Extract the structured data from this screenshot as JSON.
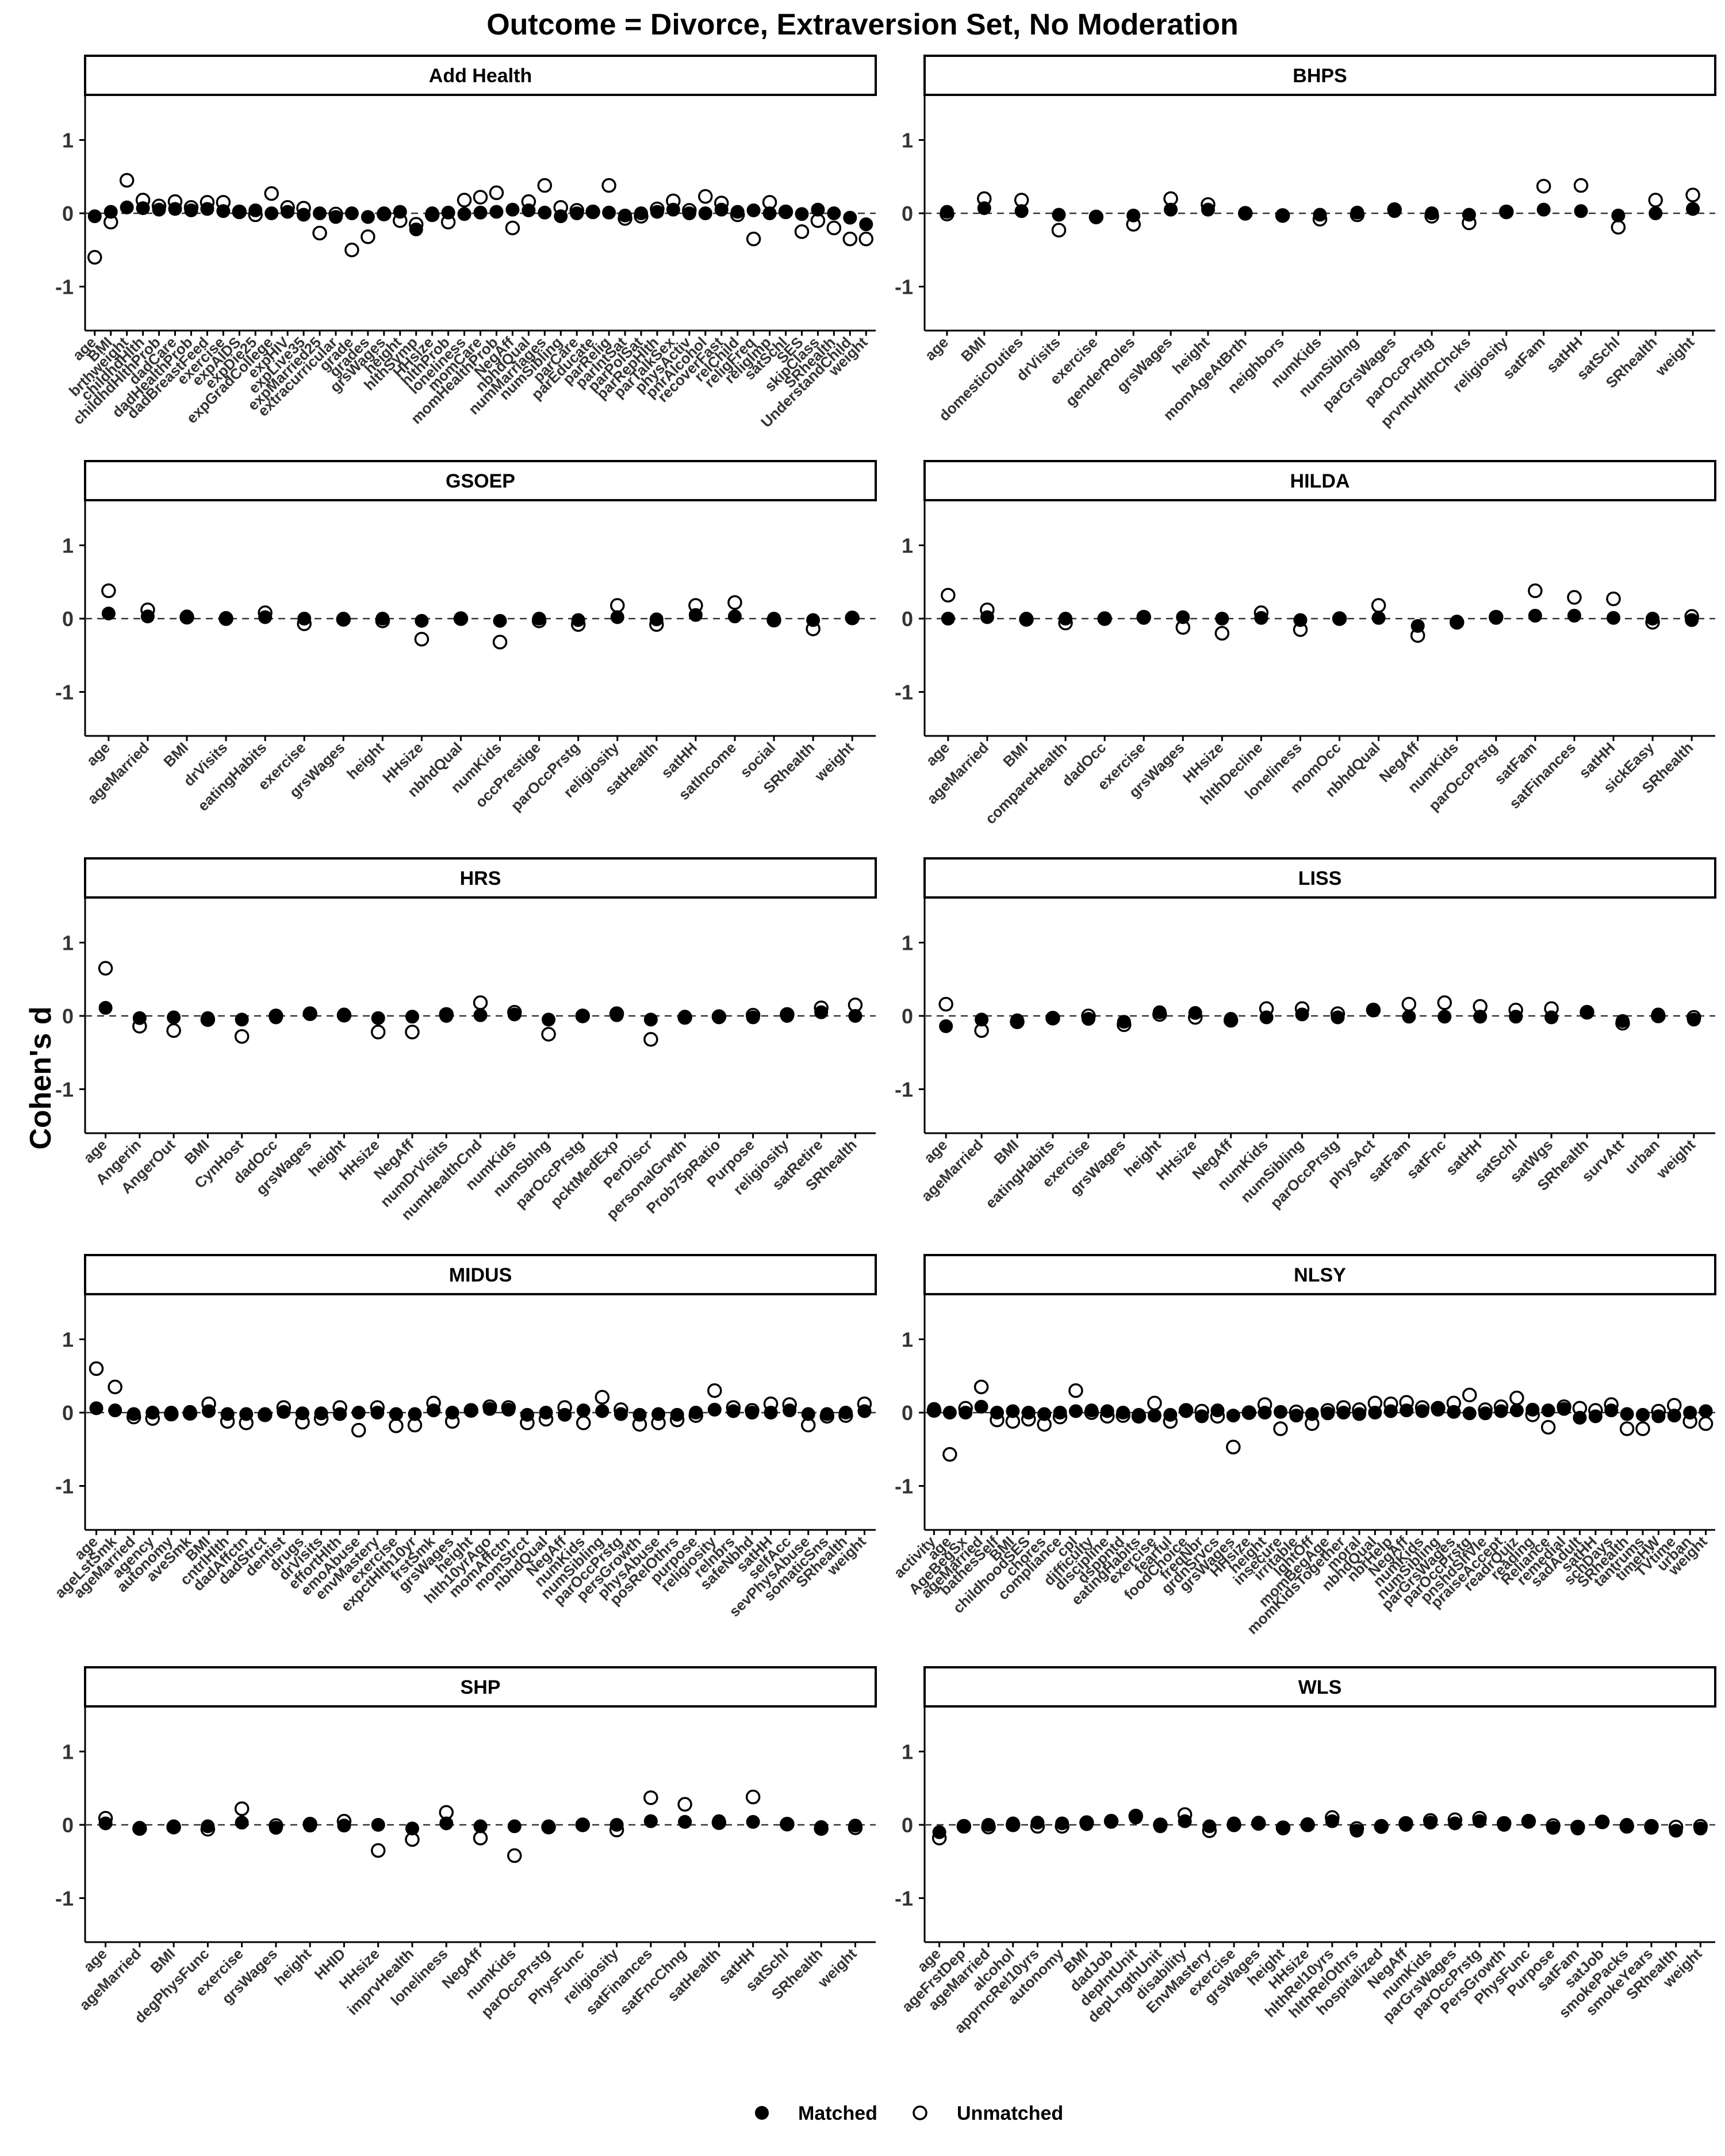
{
  "chart_data": {
    "type": "scatter",
    "title": "Outcome = Divorce, Extraversion Set, No Moderation",
    "ylabel": "Cohen's d",
    "ylim": [
      -1.6,
      1.6
    ],
    "yticks": [
      -1,
      0,
      1
    ],
    "reference_line": 0,
    "legend": {
      "position": "bottom",
      "entries": [
        {
          "label": "Matched",
          "marker": "filled-circle"
        },
        {
          "label": "Unmatched",
          "marker": "open-circle"
        }
      ]
    },
    "panels": [
      {
        "name": "Add Health",
        "x": [
          "age",
          "BMI",
          "brthweight",
          "childhdHlth",
          "childhdHlthProb",
          "dadCare",
          "dadHealthProb",
          "dadBreastFeed",
          "exercise",
          "expAIDS",
          "expDie25",
          "expGradCollege",
          "expHIV",
          "expLive35",
          "expMarried25",
          "extracurricular",
          "grade",
          "grades",
          "grsWages",
          "height",
          "hlthSymp",
          "HHsize",
          "hlthProb",
          "loneliness",
          "momCare",
          "momHealthProb",
          "NegAff",
          "nbhdQual",
          "numMarriages",
          "numSibling",
          "parCare",
          "parEducate",
          "parRelig",
          "parIntSat",
          "parPolSat",
          "parRepHlth",
          "parTalkSex",
          "physActiv",
          "pnrAlcohol",
          "recoverFast",
          "relChild",
          "religFreq",
          "religImp",
          "satSchl",
          "SES",
          "skipClass",
          "SRhealth",
          "UnderstandChild",
          "weight"
        ],
        "matched": [
          -0.04,
          0.02,
          0.08,
          0.07,
          0.05,
          0.06,
          0.04,
          0.06,
          0.03,
          0.02,
          0.04,
          0.0,
          0.02,
          -0.02,
          0.0,
          -0.05,
          0.0,
          -0.05,
          0.0,
          0.02,
          -0.22,
          0.0,
          0.01,
          -0.01,
          0.01,
          0.02,
          0.05,
          0.04,
          0.01,
          -0.04,
          0.0,
          0.02,
          0.01,
          -0.03,
          0.0,
          0.02,
          0.05,
          0.0,
          0.0,
          0.05,
          0.02,
          0.04,
          0.0,
          0.02,
          -0.01,
          0.05,
          0.0,
          -0.06,
          -0.15
        ],
        "unmatched": [
          -0.6,
          -0.12,
          0.45,
          0.18,
          0.1,
          0.16,
          0.08,
          0.15,
          0.15,
          0.02,
          -0.02,
          0.27,
          0.08,
          0.07,
          -0.27,
          -0.01,
          -0.5,
          -0.32,
          -0.01,
          -0.1,
          -0.15,
          -0.02,
          -0.12,
          0.18,
          0.22,
          0.28,
          -0.2,
          0.16,
          0.38,
          0.08,
          0.04,
          0.02,
          0.38,
          -0.07,
          -0.04,
          0.06,
          0.17,
          0.04,
          0.23,
          0.14,
          -0.02,
          -0.35,
          0.15,
          0.02,
          -0.25,
          -0.1,
          -0.2,
          -0.35,
          -0.35
        ]
      },
      {
        "name": "BHPS",
        "x": [
          "age",
          "BMI",
          "domesticDuties",
          "drVisits",
          "exercise",
          "genderRoles",
          "grsWages",
          "height",
          "momAgeAtBrth",
          "neighbors",
          "numKids",
          "numSiblng",
          "parGrsWages",
          "parOccPrstg",
          "prvntvHlthChcks",
          "religiosity",
          "satFam",
          "satHH",
          "satSchl",
          "SRhealth",
          "weight"
        ],
        "matched": [
          0.02,
          0.07,
          0.03,
          -0.02,
          -0.05,
          -0.03,
          0.05,
          0.05,
          0.0,
          -0.03,
          -0.02,
          0.01,
          0.03,
          0.0,
          -0.02,
          0.02,
          0.05,
          0.03,
          -0.03,
          0.0,
          0.06
        ],
        "unmatched": [
          -0.01,
          0.2,
          0.18,
          -0.23,
          -0.05,
          -0.15,
          0.2,
          0.12,
          0.0,
          -0.03,
          -0.08,
          -0.02,
          0.05,
          -0.04,
          -0.13,
          0.02,
          0.37,
          0.38,
          -0.19,
          0.18,
          0.25
        ]
      },
      {
        "name": "GSOEP",
        "x": [
          "age",
          "ageMarried",
          "BMI",
          "drVisits",
          "eatingHabits",
          "exercise",
          "grsWages",
          "height",
          "HHsize",
          "nbhdQual",
          "numKids",
          "occPrestige",
          "parOccPrstg",
          "religiosity",
          "satHealth",
          "satHH",
          "satIncome",
          "social",
          "SRhealth",
          "weight"
        ],
        "matched": [
          0.07,
          0.03,
          0.03,
          0.01,
          0.02,
          0.0,
          0.0,
          0.0,
          -0.03,
          0.0,
          -0.03,
          0.0,
          -0.02,
          0.02,
          -0.01,
          0.05,
          0.03,
          0.0,
          -0.02,
          0.01
        ],
        "unmatched": [
          0.38,
          0.12,
          0.02,
          0.0,
          0.08,
          -0.07,
          -0.01,
          -0.03,
          -0.28,
          0.0,
          -0.32,
          -0.03,
          -0.08,
          0.18,
          -0.08,
          0.18,
          0.22,
          -0.02,
          -0.14,
          0.01
        ]
      },
      {
        "name": "HILDA",
        "x": [
          "age",
          "ageMarried",
          "BMI",
          "compareHealth",
          "dadOcc",
          "exercise",
          "grsWages",
          "HHsize",
          "hlthDecline",
          "loneliness",
          "momOcc",
          "nbhdQual",
          "NegAff",
          "numKids",
          "parOccPrstg",
          "satFam",
          "satFinances",
          "satHH",
          "sickEasy",
          "SRhealth"
        ],
        "matched": [
          0.0,
          0.02,
          0.0,
          0.0,
          0.0,
          0.01,
          0.02,
          0.0,
          0.01,
          -0.02,
          0.0,
          0.01,
          -0.1,
          -0.04,
          0.01,
          0.04,
          0.04,
          0.01,
          0.0,
          -0.02
        ],
        "unmatched": [
          0.32,
          0.12,
          -0.01,
          -0.06,
          0.0,
          0.02,
          -0.12,
          -0.2,
          0.08,
          -0.15,
          0.0,
          0.18,
          -0.23,
          -0.05,
          0.02,
          0.38,
          0.29,
          0.27,
          -0.05,
          0.03
        ]
      },
      {
        "name": "HRS",
        "x": [
          "age",
          "Angerin",
          "AngerOut",
          "BMI",
          "CynHost",
          "dadOcc",
          "grsWages",
          "height",
          "HHsize",
          "NegAff",
          "numDrVisits",
          "numHealthCnd",
          "numKids",
          "numSblng",
          "parOccPrstg",
          "pcktMedExp",
          "PerDiscr",
          "personalGrwth",
          "Prob75pRatio",
          "Purpose",
          "religiosity",
          "satRetire",
          "SRhealth"
        ],
        "matched": [
          0.11,
          -0.03,
          -0.02,
          -0.03,
          -0.05,
          -0.02,
          0.03,
          0.02,
          -0.03,
          -0.01,
          0.0,
          0.01,
          0.02,
          -0.05,
          0.0,
          0.01,
          -0.05,
          -0.01,
          -0.02,
          -0.02,
          0.0,
          0.05,
          0.0
        ],
        "unmatched": [
          0.65,
          -0.14,
          -0.2,
          -0.05,
          -0.28,
          0.0,
          0.03,
          0.01,
          -0.22,
          -0.22,
          0.02,
          0.18,
          0.05,
          -0.25,
          0.0,
          0.03,
          -0.32,
          -0.02,
          -0.01,
          0.01,
          0.02,
          0.11,
          0.15
        ]
      },
      {
        "name": "LISS",
        "x": [
          "age",
          "ageMarried",
          "BMI",
          "eatingHabits",
          "exercise",
          "grsWages",
          "height",
          "HHsize",
          "NegAff",
          "numKids",
          "numSibling",
          "parOccPrstg",
          "physAct",
          "satFam",
          "satFnc",
          "satHH",
          "satSchl",
          "satWgs",
          "SRhealth",
          "survAtt",
          "urban",
          "weight"
        ],
        "matched": [
          -0.14,
          -0.05,
          -0.06,
          -0.03,
          -0.04,
          -0.08,
          0.05,
          0.04,
          -0.04,
          -0.02,
          0.02,
          -0.02,
          0.08,
          -0.01,
          -0.01,
          -0.01,
          -0.01,
          -0.02,
          0.05,
          -0.07,
          0.02,
          -0.05
        ],
        "unmatched": [
          0.16,
          -0.2,
          -0.08,
          -0.03,
          0.0,
          -0.12,
          0.02,
          -0.02,
          -0.06,
          0.1,
          0.1,
          0.03,
          0.08,
          0.16,
          0.18,
          0.13,
          0.08,
          0.1,
          0.05,
          -0.1,
          0.0,
          -0.02
        ]
      },
      {
        "name": "MIDUS",
        "x": [
          "age",
          "ageLstSmk",
          "ageMarried",
          "agency",
          "autonomy",
          "aveSmk",
          "BMI",
          "cntrlHlth",
          "dadAffctn",
          "dadStrct",
          "dentist",
          "drugs",
          "drVisits",
          "effortHlth",
          "emoAbuse",
          "envMastery",
          "exercise",
          "expctHlth10yr",
          "frstSmk",
          "grsWages",
          "height",
          "hlth10yrAgo",
          "momAffctn",
          "momStrct",
          "nbhdQual",
          "NegAff",
          "numKids",
          "numSibling",
          "parOccPrstg",
          "persGrowth",
          "physAbuse",
          "posRelOthrs",
          "purpose",
          "religiosity",
          "relnbrs",
          "safeNbhd",
          "satHH",
          "selfAcc",
          "sevPhysAbuse",
          "somaticSns",
          "SRhealth",
          "weight"
        ],
        "matched": [
          0.06,
          0.03,
          -0.02,
          0.0,
          0.0,
          0.01,
          0.02,
          -0.02,
          -0.02,
          -0.02,
          0.01,
          -0.01,
          -0.01,
          -0.02,
          0.0,
          0.0,
          -0.02,
          -0.02,
          0.03,
          0.0,
          0.03,
          0.05,
          0.04,
          -0.03,
          0.0,
          -0.03,
          0.03,
          0.02,
          -0.02,
          -0.03,
          -0.02,
          -0.03,
          0.0,
          0.04,
          0.02,
          0.0,
          0.0,
          0.03,
          -0.02,
          -0.02,
          0.0,
          0.02
        ],
        "unmatched": [
          0.6,
          0.35,
          -0.06,
          -0.08,
          -0.02,
          -0.01,
          0.12,
          -0.12,
          -0.14,
          -0.03,
          0.07,
          -0.13,
          -0.08,
          0.07,
          -0.24,
          0.07,
          -0.18,
          -0.17,
          0.13,
          -0.12,
          0.03,
          0.08,
          0.07,
          -0.14,
          -0.09,
          0.07,
          -0.14,
          0.21,
          0.04,
          -0.16,
          -0.14,
          -0.1,
          -0.04,
          0.3,
          0.07,
          0.03,
          0.12,
          0.11,
          -0.17,
          -0.05,
          -0.04,
          0.12
        ]
      },
      {
        "name": "NLSY",
        "x": [
          "activity",
          "age",
          "AgeBegSx",
          "ageMarried",
          "bathesSelf",
          "BMI",
          "childhoodSES",
          "chores",
          "compliance",
          "cpl",
          "difficulty",
          "discipline",
          "dsppntd",
          "eatingHabits",
          "exercise",
          "fearful",
          "foodChoice",
          "freqNbr",
          "grdnSrvcs",
          "grsWages",
          "HHsize",
          "height",
          "insecure",
          "irritable",
          "lghtOff",
          "momBegAge",
          "momKidsTogether",
          "moral",
          "nbhdQual",
          "nbrHelp",
          "NegAff",
          "numKids",
          "numSibling",
          "parGrsWages",
          "parOccPrstg",
          "pnshdSlfVle",
          "praiseAccept",
          "readrQuiz",
          "reading",
          "Reliance",
          "remedial",
          "sadAdult",
          "satHH",
          "schDays",
          "SRhealth",
          "tantrums",
          "timeHW",
          "TVtime",
          "urban",
          "weight"
        ],
        "matched": [
          0.05,
          0.0,
          0.0,
          0.08,
          0.0,
          0.02,
          0.0,
          -0.02,
          0.0,
          0.02,
          0.03,
          0.02,
          0.0,
          -0.03,
          -0.04,
          -0.03,
          0.02,
          -0.05,
          0.03,
          -0.04,
          0.0,
          0.0,
          0.01,
          -0.04,
          -0.02,
          -0.01,
          0.0,
          -0.02,
          0.0,
          0.02,
          0.03,
          0.02,
          0.04,
          0.01,
          -0.01,
          -0.01,
          0.02,
          0.03,
          0.04,
          0.03,
          0.05,
          -0.07,
          -0.05,
          0.03,
          -0.02,
          -0.03,
          -0.05,
          -0.04,
          0.0,
          0.02
        ],
        "unmatched": [
          0.03,
          -0.57,
          0.06,
          0.35,
          -0.1,
          -0.12,
          -0.09,
          -0.16,
          -0.06,
          0.3,
          0.0,
          -0.05,
          -0.04,
          -0.05,
          0.13,
          -0.12,
          0.03,
          0.02,
          -0.05,
          -0.47,
          0.0,
          0.11,
          -0.22,
          0.01,
          -0.15,
          0.03,
          0.07,
          0.04,
          0.13,
          0.12,
          0.14,
          0.07,
          0.06,
          0.13,
          0.24,
          0.04,
          0.08,
          0.2,
          -0.03,
          -0.2,
          0.08,
          0.06,
          0.03,
          0.11,
          -0.22,
          -0.22,
          0.02,
          0.1,
          -0.12,
          -0.15
        ]
      },
      {
        "name": "SHP",
        "x": [
          "age",
          "ageMarried",
          "BMI",
          "degPhysFunc",
          "exercise",
          "grsWages",
          "height",
          "HHID",
          "HHsize",
          "imprvHealth",
          "loneliness",
          "NegAff",
          "numKids",
          "parOccPrstg",
          "PhysFunc",
          "religiosity",
          "satFinances",
          "satFncChng",
          "satHealth",
          "satHH",
          "satSchl",
          "SRhealth",
          "weight"
        ],
        "matched": [
          0.02,
          -0.04,
          -0.02,
          -0.02,
          0.03,
          -0.04,
          -0.01,
          -0.01,
          0.0,
          -0.05,
          0.02,
          -0.02,
          -0.02,
          -0.02,
          0.0,
          0.0,
          0.05,
          0.04,
          0.05,
          0.04,
          0.01,
          -0.03,
          -0.01
        ],
        "unmatched": [
          0.09,
          -0.05,
          -0.03,
          -0.06,
          0.22,
          -0.01,
          0.01,
          0.05,
          -0.35,
          -0.2,
          0.17,
          -0.18,
          -0.42,
          -0.03,
          0.0,
          -0.07,
          0.37,
          0.28,
          0.03,
          0.38,
          0.01,
          -0.05,
          -0.04
        ]
      },
      {
        "name": "WLS",
        "x": [
          "age",
          "ageFrstDep",
          "ageMarried",
          "alcohol",
          "apprncRel10yrs",
          "autonomy",
          "BMI",
          "dadJob",
          "depIntUnit",
          "depLngthUnit",
          "disability",
          "EnvMastery",
          "exercise",
          "grsWages",
          "height",
          "HHsize",
          "hlthRel10yrs",
          "hlthRelOthrs",
          "hospitalized",
          "NegAff",
          "numKids",
          "parGrsWages",
          "parOccPrstg",
          "PersGrowth",
          "PhysFunc",
          "Purpose",
          "satFam",
          "satJob",
          "smokePacks",
          "smokeYears",
          "SRhealth",
          "weight"
        ],
        "matched": [
          -0.1,
          -0.02,
          0.0,
          0.02,
          0.03,
          0.02,
          0.01,
          0.04,
          0.1,
          -0.02,
          0.05,
          -0.02,
          0.02,
          0.03,
          -0.05,
          0.01,
          0.05,
          -0.08,
          -0.03,
          0.0,
          0.03,
          0.02,
          0.05,
          0.0,
          0.04,
          -0.04,
          -0.05,
          0.04,
          0.0,
          -0.04,
          -0.08,
          -0.05
        ],
        "unmatched": [
          -0.18,
          -0.02,
          -0.03,
          0.0,
          -0.02,
          -0.02,
          0.03,
          0.05,
          0.12,
          0.0,
          0.14,
          -0.08,
          0.0,
          0.02,
          -0.04,
          0.0,
          0.1,
          -0.05,
          -0.02,
          0.02,
          0.06,
          0.07,
          0.09,
          0.02,
          0.05,
          -0.01,
          -0.03,
          0.04,
          -0.02,
          -0.02,
          -0.03,
          -0.02
        ]
      }
    ]
  }
}
